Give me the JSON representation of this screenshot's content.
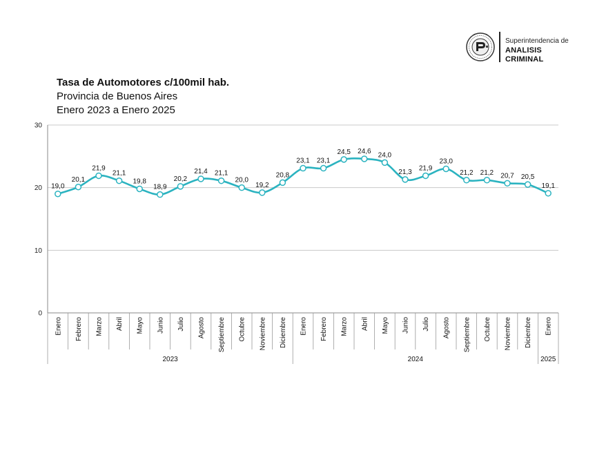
{
  "brand": {
    "line1": "Superintendencia de",
    "line2": "ANALISIS CRIMINAL",
    "seal_icon": "seal-emblem-icon"
  },
  "chart_data": {
    "type": "line",
    "title": "Tasa de Automotores c/100mil hab.",
    "subtitle": "Provincia de Buenos Aires",
    "subtitle2": "Enero 2023 a Enero 2025",
    "categories": [
      "Enero",
      "Febrero",
      "Marzo",
      "Abril",
      "Mayo",
      "Junio",
      "Julio",
      "Agosto",
      "Septiembre",
      "Octubre",
      "Noviembre",
      "Diciembre",
      "Enero",
      "Febrero",
      "Marzo",
      "Abril",
      "Mayo",
      "Junio",
      "Julio",
      "Agosto",
      "Septiembre",
      "Octubre",
      "Noviembre",
      "Diciembre",
      "Enero"
    ],
    "values": [
      19.0,
      20.1,
      21.9,
      21.1,
      19.8,
      18.9,
      20.2,
      21.4,
      21.1,
      20.0,
      19.2,
      20.8,
      23.1,
      23.1,
      24.5,
      24.6,
      24.0,
      21.3,
      21.9,
      23.0,
      21.2,
      21.2,
      20.7,
      20.5,
      19.1
    ],
    "value_labels": [
      "19,0",
      "20,1",
      "21,9",
      "21,1",
      "19,8",
      "18,9",
      "20,2",
      "21,4",
      "21,1",
      "20,0",
      "19,2",
      "20,8",
      "23,1",
      "23,1",
      "24,5",
      "24,6",
      "24,0",
      "21,3",
      "21,9",
      "23,0",
      "21,2",
      "21,2",
      "20,7",
      "20,5",
      "19,1"
    ],
    "groups": [
      {
        "label": "2023",
        "count": 12
      },
      {
        "label": "2024",
        "count": 12
      },
      {
        "label": "2025",
        "count": 1
      }
    ],
    "ylim": [
      0,
      30
    ],
    "yticks": [
      "0",
      "10",
      "20",
      "30"
    ],
    "grid": true,
    "line_color": "#2BB3C0",
    "marker_fill": "#ffffff",
    "smooth": true
  }
}
